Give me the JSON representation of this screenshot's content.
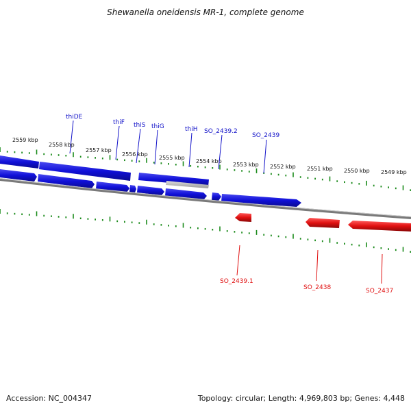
{
  "title": "Shewanella oneidensis MR-1, complete genome",
  "footer": {
    "accession": "Accession: NC_004347",
    "summary": "Topology: circular; Length: 4,969,803 bp; Genes: 4,448"
  },
  "colors": {
    "forward_strand": "#1010d8",
    "reverse_strand": "#e01010",
    "backbone": "#8a8a8a",
    "ticks": "#1a8a1a",
    "highlight": "#b8b8b8"
  },
  "scale_labels": [
    "2559 kbp",
    "2558 kbp",
    "2557 kbp",
    "2556 kbp",
    "2555 kbp",
    "2554 kbp",
    "2553 kbp",
    "2552 kbp",
    "2551 kbp",
    "2550 kbp",
    "2549 kbp"
  ],
  "forward_genes": [
    "thiDE",
    "thiF",
    "thiS",
    "thiG",
    "thiH",
    "SO_2439.2",
    "SO_2439"
  ],
  "reverse_genes": [
    "SO_2439.1",
    "SO_2438",
    "SO_2437"
  ]
}
